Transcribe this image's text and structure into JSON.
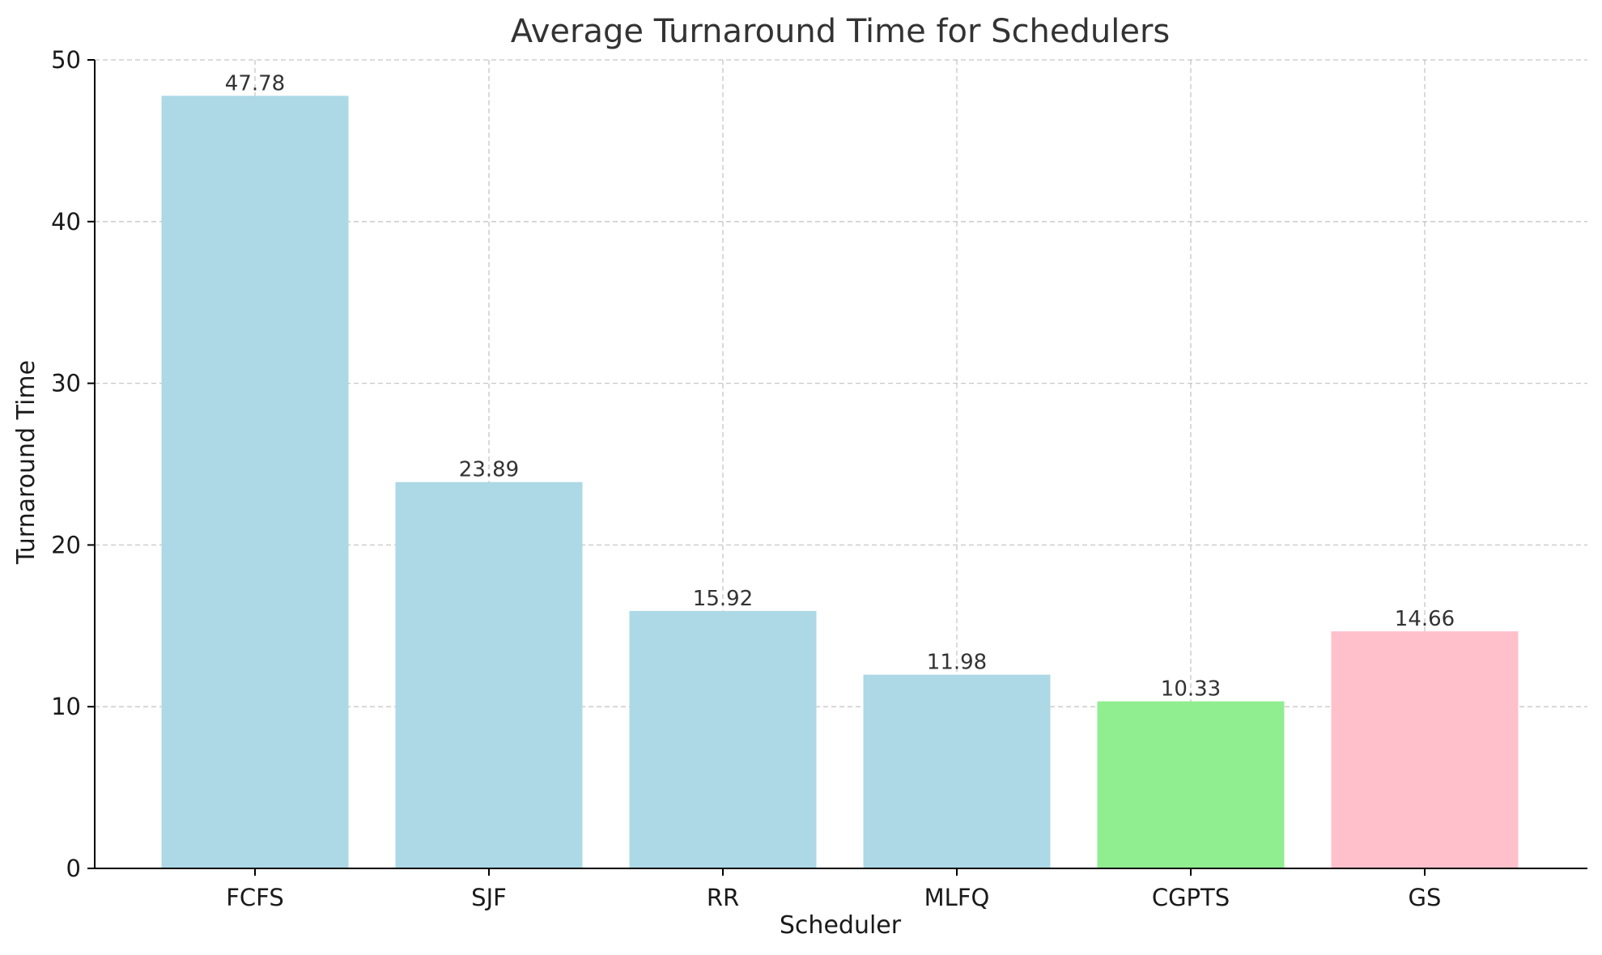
{
  "chart_data": {
    "type": "bar",
    "title": "Average Turnaround Time for Schedulers",
    "xlabel": "Scheduler",
    "ylabel": "Turnaround Time",
    "categories": [
      "FCFS",
      "SJF",
      "RR",
      "MLFQ",
      "CGPTS",
      "GS"
    ],
    "values": [
      47.78,
      23.89,
      15.92,
      11.98,
      10.33,
      14.66
    ],
    "data_labels": [
      "47.78",
      "23.89",
      "15.92",
      "11.98",
      "10.33",
      "14.66"
    ],
    "bar_colors": [
      "#add8e6",
      "#add8e6",
      "#add8e6",
      "#add8e6",
      "#90ee90",
      "#ffc0cb"
    ],
    "ylim": [
      0,
      50
    ],
    "yticks": [
      0,
      10,
      20,
      30,
      40,
      50
    ],
    "grid": true,
    "legend": "none"
  }
}
